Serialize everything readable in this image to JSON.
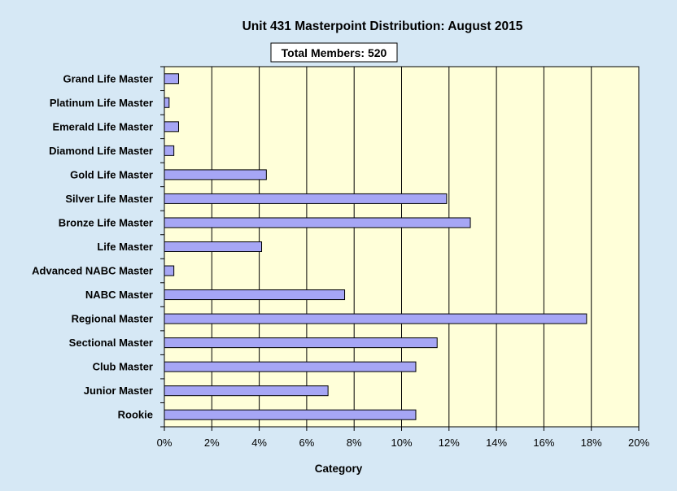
{
  "chart_data": {
    "type": "bar",
    "orientation": "horizontal",
    "title": "Unit 431 Masterpoint Distribution: August 2015",
    "subtitle": "Total Members: 520",
    "xlabel": "Category",
    "ylabel": "",
    "xlim": [
      0,
      20
    ],
    "xticks": [
      0,
      2,
      4,
      6,
      8,
      10,
      12,
      14,
      16,
      18,
      20
    ],
    "xtick_labels": [
      "0%",
      "2%",
      "4%",
      "6%",
      "8%",
      "10%",
      "12%",
      "14%",
      "16%",
      "18%",
      "20%"
    ],
    "grid": "vertical",
    "legend": "none",
    "categories": [
      "Grand Life Master",
      "Platinum Life Master",
      "Emerald Life Master",
      "Diamond Life Master",
      "Gold Life Master",
      "Silver Life Master",
      "Bronze Life Master",
      "Life Master",
      "Advanced NABC Master",
      "NABC Master",
      "Regional Master",
      "Sectional Master",
      "Club Master",
      "Junior Master",
      "Rookie"
    ],
    "values": [
      0.6,
      0.2,
      0.6,
      0.4,
      4.3,
      11.9,
      12.9,
      4.1,
      0.4,
      7.6,
      17.8,
      11.5,
      10.6,
      6.9,
      10.6
    ],
    "colors": {
      "page_background": "#d6e8f5",
      "plot_background": "#ffffd9",
      "bar_fill": "#a6a6f5",
      "bar_stroke": "#000000",
      "grid": "#000000"
    }
  }
}
